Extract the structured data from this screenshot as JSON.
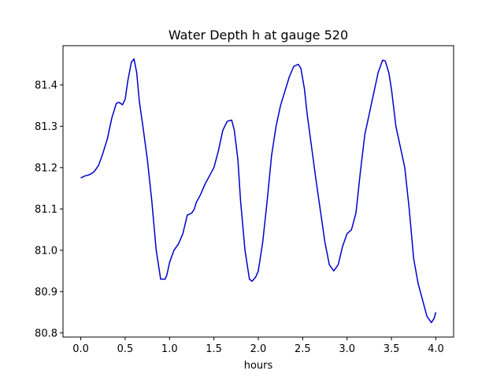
{
  "chart_data": {
    "type": "line",
    "title": "Water Depth h at gauge 520",
    "xlabel": "hours",
    "ylabel": "",
    "xlim": [
      -0.2,
      4.2
    ],
    "ylim": [
      80.79,
      81.495
    ],
    "xticks": [
      0.0,
      0.5,
      1.0,
      1.5,
      2.0,
      2.5,
      3.0,
      3.5,
      4.0
    ],
    "xtick_labels": [
      "0.0",
      "0.5",
      "1.0",
      "1.5",
      "2.0",
      "2.5",
      "3.0",
      "3.5",
      "4.0"
    ],
    "yticks": [
      80.8,
      80.9,
      81.0,
      81.1,
      81.2,
      81.3,
      81.4
    ],
    "ytick_labels": [
      "80.8",
      "80.9",
      "81.0",
      "81.1",
      "81.2",
      "81.3",
      "81.4"
    ],
    "grid": false,
    "legend": "none",
    "series": [
      {
        "color": "#0000cc",
        "x": [
          0.0,
          0.05,
          0.1,
          0.15,
          0.2,
          0.25,
          0.3,
          0.35,
          0.4,
          0.43,
          0.47,
          0.5,
          0.53,
          0.57,
          0.6,
          0.63,
          0.66,
          0.7,
          0.75,
          0.8,
          0.85,
          0.9,
          0.95,
          0.97,
          1.0,
          1.05,
          1.1,
          1.15,
          1.2,
          1.25,
          1.28,
          1.3,
          1.35,
          1.4,
          1.45,
          1.5,
          1.55,
          1.6,
          1.65,
          1.7,
          1.73,
          1.77,
          1.8,
          1.85,
          1.9,
          1.93,
          1.97,
          2.0,
          2.05,
          2.1,
          2.15,
          2.2,
          2.25,
          2.3,
          2.35,
          2.4,
          2.45,
          2.48,
          2.52,
          2.55,
          2.6,
          2.65,
          2.7,
          2.75,
          2.8,
          2.85,
          2.9,
          2.95,
          3.0,
          3.05,
          3.1,
          3.15,
          3.2,
          3.25,
          3.3,
          3.35,
          3.4,
          3.43,
          3.47,
          3.5,
          3.55,
          3.6,
          3.65,
          3.7,
          3.75,
          3.8,
          3.85,
          3.9,
          3.95,
          3.98,
          4.0
        ],
        "y": [
          81.175,
          81.18,
          81.183,
          81.19,
          81.205,
          81.235,
          81.27,
          81.32,
          81.355,
          81.358,
          81.352,
          81.365,
          81.41,
          81.455,
          81.463,
          81.43,
          81.36,
          81.3,
          81.22,
          81.12,
          81.0,
          80.93,
          80.93,
          80.94,
          80.97,
          81.0,
          81.015,
          81.04,
          81.085,
          81.09,
          81.1,
          81.115,
          81.135,
          81.16,
          81.18,
          81.2,
          81.24,
          81.29,
          81.312,
          81.315,
          81.29,
          81.22,
          81.12,
          81.0,
          80.93,
          80.925,
          80.935,
          80.95,
          81.02,
          81.12,
          81.23,
          81.3,
          81.35,
          81.385,
          81.42,
          81.445,
          81.45,
          81.44,
          81.39,
          81.33,
          81.25,
          81.17,
          81.095,
          81.02,
          80.965,
          80.95,
          80.965,
          81.01,
          81.04,
          81.05,
          81.09,
          81.19,
          81.28,
          81.33,
          81.38,
          81.43,
          81.46,
          81.458,
          81.43,
          81.39,
          81.3,
          81.25,
          81.2,
          81.1,
          80.98,
          80.92,
          80.88,
          80.84,
          80.825,
          80.835,
          80.85
        ]
      }
    ]
  }
}
